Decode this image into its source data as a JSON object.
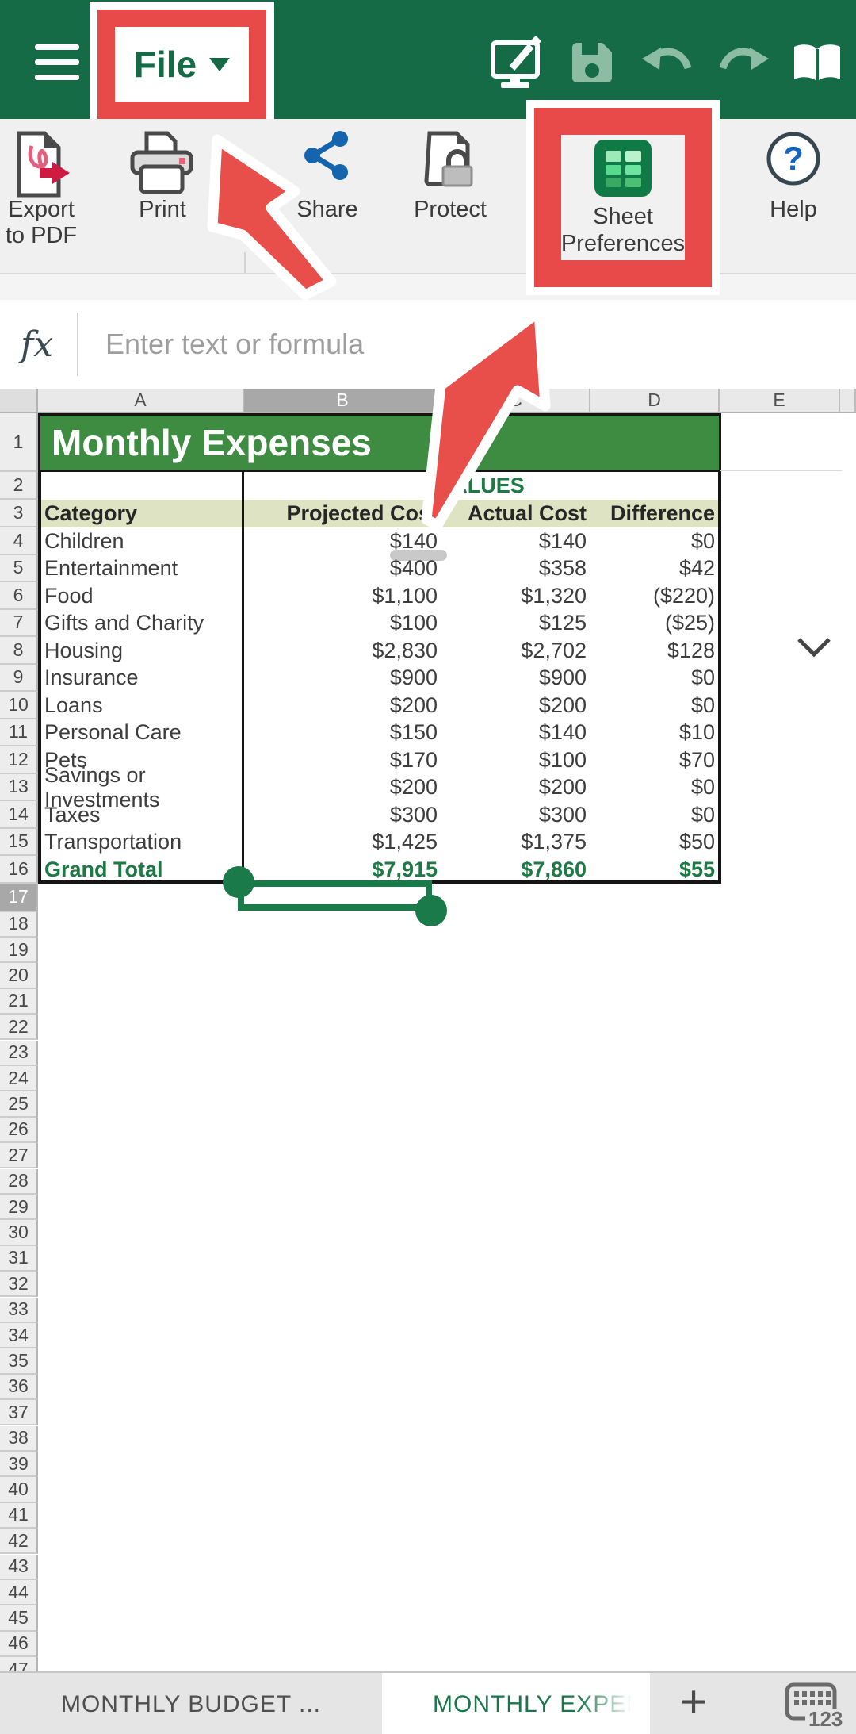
{
  "topbar": {
    "file_label": "File",
    "menu_icon": "hamburger-icon",
    "action_icons": [
      "edit-on-monitor",
      "save",
      "undo",
      "redo",
      "read-mode"
    ]
  },
  "toolbar": {
    "items": [
      {
        "id": "export-pdf",
        "line1": "Export",
        "line2": "to PDF"
      },
      {
        "id": "print",
        "line1": "Print"
      },
      {
        "id": "share",
        "line1": "Share"
      },
      {
        "id": "protect",
        "line1": "Protect"
      },
      {
        "id": "sheet-preferences",
        "line1": "Sheet",
        "line2": "Preferences"
      },
      {
        "id": "help",
        "line1": "Help"
      }
    ]
  },
  "formula_bar": {
    "fx_label": "fx",
    "placeholder": "Enter text or formula"
  },
  "sheet": {
    "columns": [
      "A",
      "B",
      "C",
      "D",
      "E"
    ],
    "row_count": 47,
    "title_cell": "Monthly Expenses",
    "values_label": "VALUES",
    "selected_cell": "B17",
    "selected_column": "B",
    "selected_row": 17,
    "table": {
      "headers": [
        "Category",
        "Projected Cost",
        "Actual Cost",
        "Difference"
      ],
      "rows": [
        [
          "Children",
          "$140",
          "$140",
          "$0"
        ],
        [
          "Entertainment",
          "$400",
          "$358",
          "$42"
        ],
        [
          "Food",
          "$1,100",
          "$1,320",
          "($220)"
        ],
        [
          "Gifts and Charity",
          "$100",
          "$125",
          "($25)"
        ],
        [
          "Housing",
          "$2,830",
          "$2,702",
          "$128"
        ],
        [
          "Insurance",
          "$900",
          "$900",
          "$0"
        ],
        [
          "Loans",
          "$200",
          "$200",
          "$0"
        ],
        [
          "Personal Care",
          "$150",
          "$140",
          "$10"
        ],
        [
          "Pets",
          "$170",
          "$100",
          "$70"
        ],
        [
          "Savings or Investments",
          "$200",
          "$200",
          "$0"
        ],
        [
          "Taxes",
          "$300",
          "$300",
          "$0"
        ],
        [
          "Transportation",
          "$1,425",
          "$1,375",
          "$50"
        ]
      ],
      "total_row": [
        "Grand Total",
        "$7,915",
        "$7,860",
        "$55"
      ]
    }
  },
  "tab_bar": {
    "tabs": [
      {
        "label": "MONTHLY BUDGET ...",
        "active": false
      },
      {
        "label": "MONTHLY EXPENSES",
        "active": true
      }
    ],
    "add_tab_label": "+",
    "numeric_keyboard_label": "123"
  },
  "colors": {
    "app_green": "#156b45",
    "banner_green": "#3d8c41",
    "accent_text_green": "#1d7a45",
    "highlight_red": "#e84a4a",
    "share_blue": "#1465ad",
    "help_blue": "#1565c0"
  }
}
